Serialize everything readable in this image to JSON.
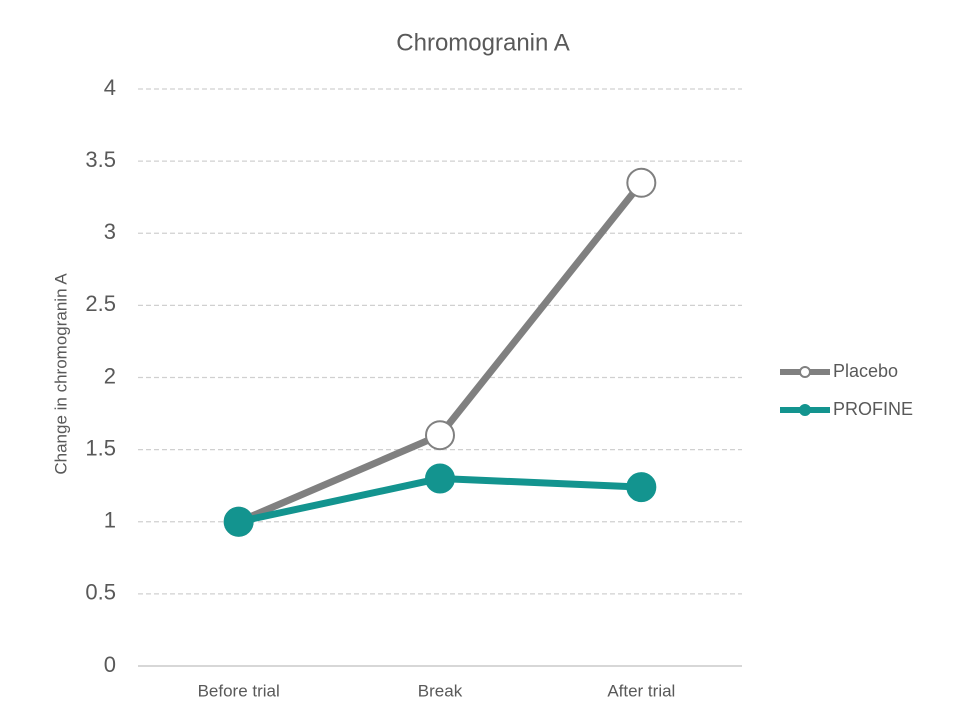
{
  "chart_data": {
    "type": "line",
    "title": "Chromogranin A",
    "y_label": "Change in chromogranin A",
    "categories": [
      "Before trial",
      "Break",
      "After trial"
    ],
    "series": [
      {
        "name": "Placebo",
        "color": "#808080",
        "marker": "hollow",
        "values": [
          1,
          1.6,
          3.35
        ]
      },
      {
        "name": "PROFINE",
        "color": "#13948f",
        "marker": "filled",
        "values": [
          1,
          1.3,
          1.24
        ]
      }
    ],
    "ylim": [
      0,
      4
    ],
    "yticks": [
      0,
      0.5,
      1,
      1.5,
      2,
      2.5,
      3,
      3.5,
      4
    ],
    "grid": true,
    "legend": "right"
  }
}
